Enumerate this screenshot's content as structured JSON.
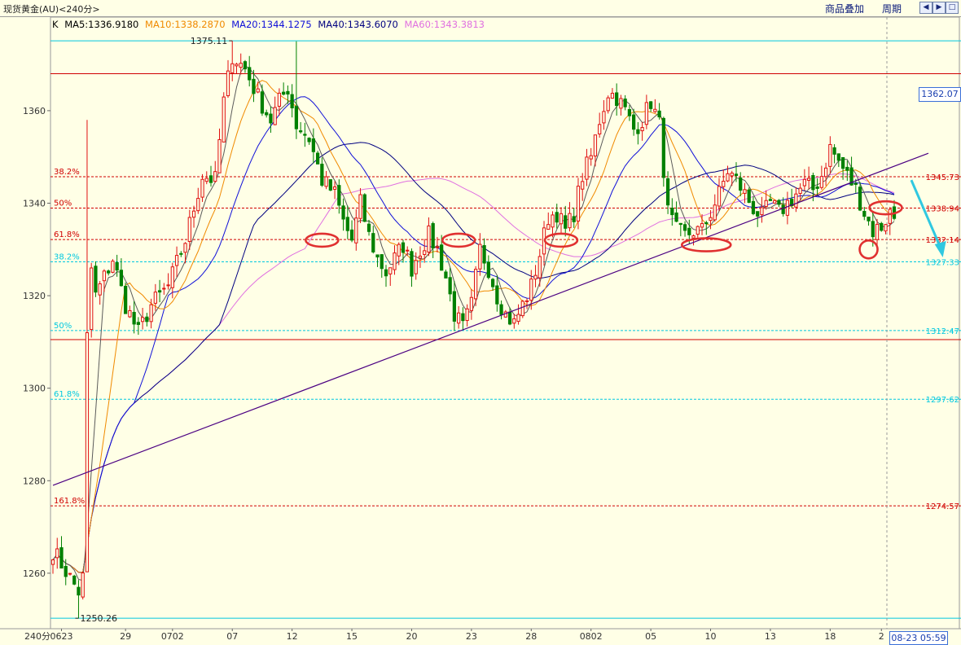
{
  "header": {
    "title": "现货黄金(AU)<240分>",
    "overlay_label": "商品叠加",
    "period_label": "周期",
    "nav_icons": [
      "arrow-left-icon",
      "arrow-right-icon",
      "zoom-icon"
    ]
  },
  "ma_legend": {
    "k": "K",
    "ma5": "MA5:1336.9180",
    "ma10": "MA10:1338.2870",
    "ma20": "MA20:1344.1275",
    "ma40": "MA40:1343.6070",
    "ma60": "MA60:1343.3813"
  },
  "colors": {
    "background": "#ffffe6",
    "up": "#e01010",
    "down": "#008000",
    "ma5": "#5a5a5a",
    "ma10": "#f08a00",
    "ma20": "#1010d8",
    "ma40": "#000080",
    "ma60": "#e070e0",
    "fib_red": "#d00000",
    "fib_cyan": "#00c8e0",
    "trendline": "#4b0082",
    "annotation": "#e03030",
    "arrow": "#30c8e0"
  },
  "axis": {
    "period_label": "240分",
    "current_time": "08-23 05:59",
    "current_price": "1362.07"
  },
  "chart_data": {
    "type": "candlestick",
    "title": "现货黄金(AU)<240分>",
    "ylim": [
      1248,
      1379
    ],
    "y_ticks": [
      1260,
      1280,
      1300,
      1320,
      1340,
      1360
    ],
    "x_ticks": [
      {
        "label": "0623",
        "i": 2
      },
      {
        "label": "29",
        "i": 17
      },
      {
        "label": "0702",
        "i": 28
      },
      {
        "label": "07",
        "i": 42
      },
      {
        "label": "12",
        "i": 56
      },
      {
        "label": "15",
        "i": 70
      },
      {
        "label": "20",
        "i": 84
      },
      {
        "label": "23",
        "i": 98
      },
      {
        "label": "28",
        "i": 112
      },
      {
        "label": "0802",
        "i": 126
      },
      {
        "label": "05",
        "i": 140
      },
      {
        "label": "10",
        "i": 154
      },
      {
        "label": "13",
        "i": 168
      },
      {
        "label": "18",
        "i": 182
      },
      {
        "label": "2",
        "i": 194
      }
    ],
    "n_bars": 198,
    "anchors": [
      [
        0,
        1265
      ],
      [
        6,
        1256
      ],
      [
        8,
        1262
      ],
      [
        10,
        1320
      ],
      [
        14,
        1328
      ],
      [
        17,
        1318
      ],
      [
        20,
        1312
      ],
      [
        23,
        1318
      ],
      [
        27,
        1322
      ],
      [
        31,
        1332
      ],
      [
        35,
        1346
      ],
      [
        38,
        1345
      ],
      [
        40,
        1362
      ],
      [
        42,
        1372
      ],
      [
        45,
        1369
      ],
      [
        48,
        1363
      ],
      [
        51,
        1358
      ],
      [
        53,
        1362
      ],
      [
        55,
        1365
      ],
      [
        57,
        1357
      ],
      [
        60,
        1354
      ],
      [
        63,
        1345
      ],
      [
        66,
        1342
      ],
      [
        68,
        1336
      ],
      [
        70,
        1332
      ],
      [
        72,
        1340
      ],
      [
        74,
        1333
      ],
      [
        76,
        1328
      ],
      [
        78,
        1325
      ],
      [
        80,
        1328
      ],
      [
        82,
        1331
      ],
      [
        84,
        1326
      ],
      [
        86,
        1330
      ],
      [
        88,
        1333
      ],
      [
        90,
        1330
      ],
      [
        92,
        1324
      ],
      [
        94,
        1316
      ],
      [
        96,
        1313
      ],
      [
        98,
        1318
      ],
      [
        100,
        1330
      ],
      [
        102,
        1326
      ],
      [
        104,
        1320
      ],
      [
        106,
        1316
      ],
      [
        108,
        1314
      ],
      [
        110,
        1318
      ],
      [
        112,
        1322
      ],
      [
        114,
        1329
      ],
      [
        116,
        1337
      ],
      [
        118,
        1338
      ],
      [
        120,
        1334
      ],
      [
        122,
        1338
      ],
      [
        124,
        1346
      ],
      [
        126,
        1350
      ],
      [
        128,
        1358
      ],
      [
        130,
        1364
      ],
      [
        132,
        1363
      ],
      [
        134,
        1360
      ],
      [
        136,
        1356
      ],
      [
        138,
        1358
      ],
      [
        140,
        1362
      ],
      [
        142,
        1357
      ],
      [
        144,
        1338
      ],
      [
        146,
        1334
      ],
      [
        148,
        1333
      ],
      [
        150,
        1334
      ],
      [
        152,
        1334
      ],
      [
        154,
        1338
      ],
      [
        156,
        1342
      ],
      [
        158,
        1347
      ],
      [
        160,
        1345
      ],
      [
        162,
        1342
      ],
      [
        164,
        1339
      ],
      [
        166,
        1337
      ],
      [
        168,
        1340
      ],
      [
        170,
        1338
      ],
      [
        172,
        1340
      ],
      [
        174,
        1342
      ],
      [
        176,
        1344
      ],
      [
        178,
        1343
      ],
      [
        180,
        1346
      ],
      [
        182,
        1352
      ],
      [
        184,
        1349
      ],
      [
        186,
        1346
      ],
      [
        188,
        1343
      ],
      [
        190,
        1338
      ],
      [
        192,
        1334
      ],
      [
        194,
        1335
      ],
      [
        196,
        1338
      ],
      [
        197,
        1337
      ]
    ],
    "extremes": [
      {
        "label": "1375.11",
        "value": 1375.11,
        "i": 42
      },
      {
        "label": "1250.26",
        "value": 1250.26,
        "i": 6
      }
    ],
    "horizontal_lines": [
      {
        "value": 1375.11,
        "color": "cyan",
        "style": "solid"
      },
      {
        "value": 1368.0,
        "color": "red",
        "style": "solid"
      },
      {
        "value": 1345.73,
        "color": "red",
        "style": "dash",
        "left_label": "38.2%",
        "right_label": "1345.73"
      },
      {
        "value": 1338.94,
        "color": "red",
        "style": "dash",
        "left_label": "50%",
        "right_label": "1338.94"
      },
      {
        "value": 1332.14,
        "color": "red",
        "style": "dash",
        "left_label": "61.8%",
        "right_label": "1332.14"
      },
      {
        "value": 1327.33,
        "color": "cyan",
        "style": "dash",
        "left_label": "38.2%",
        "right_label": "1327.33"
      },
      {
        "value": 1312.47,
        "color": "cyan",
        "style": "dash",
        "left_label": "50%",
        "right_label": "1312.47"
      },
      {
        "value": 1310.5,
        "color": "red",
        "style": "solid"
      },
      {
        "value": 1297.62,
        "color": "cyan",
        "style": "dash",
        "left_label": "61.8%",
        "right_label": "1297.62"
      },
      {
        "value": 1274.57,
        "color": "red",
        "style": "dash",
        "left_label": "161.8%",
        "right_label": "1274.57"
      },
      {
        "value": 1250.26,
        "color": "cyan",
        "style": "solid"
      }
    ],
    "trendline": {
      "x1": 0,
      "y1": 1279.0,
      "x2": 205,
      "y2": 1350.8
    },
    "circles": [
      {
        "i": 63,
        "value": 1332
      },
      {
        "i": 95,
        "value": 1332
      },
      {
        "i": 119,
        "value": 1332
      },
      {
        "i": 153,
        "value": 1331
      },
      {
        "i": 191,
        "value": 1330
      },
      {
        "i": 195,
        "value": 1339
      }
    ],
    "arrow": {
      "from_i": 201,
      "from_value": 1345,
      "to_i": 208,
      "to_value": 1329
    }
  }
}
